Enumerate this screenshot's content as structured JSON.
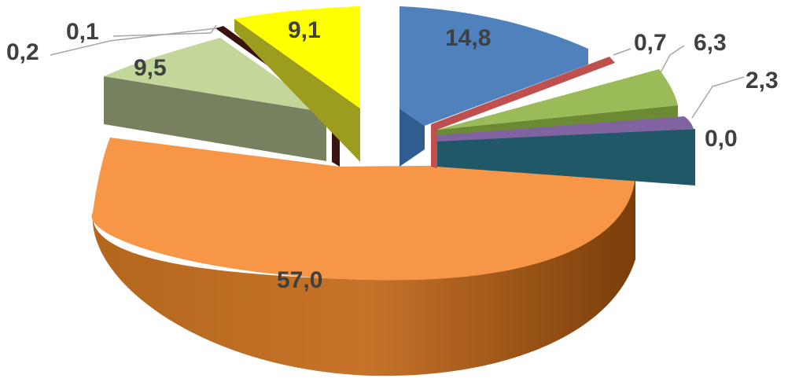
{
  "chart_data": {
    "type": "pie",
    "style": "3d-exploded",
    "title": "",
    "legend": "none",
    "slices": [
      {
        "label": "14,8",
        "value": 14.8,
        "color": "#4f81bd"
      },
      {
        "label": "0,7",
        "value": 0.7,
        "color": "#c0504d"
      },
      {
        "label": "6,3",
        "value": 6.3,
        "color": "#9bbb59"
      },
      {
        "label": "2,3",
        "value": 2.3,
        "color": "#8064a2"
      },
      {
        "label": "0,0",
        "value": 0.0,
        "color": "#31859c"
      },
      {
        "label": "57,0",
        "value": 57.0,
        "color": "#f79646"
      },
      {
        "label": "9,5",
        "value": 9.5,
        "color": "#c4d79b"
      },
      {
        "label": "0,2",
        "value": 0.2,
        "color": "#632523"
      },
      {
        "label": "0,1",
        "value": 0.1,
        "color": "#948a54"
      },
      {
        "label": "9,1",
        "value": 9.1,
        "color": "#ffff00"
      }
    ]
  }
}
